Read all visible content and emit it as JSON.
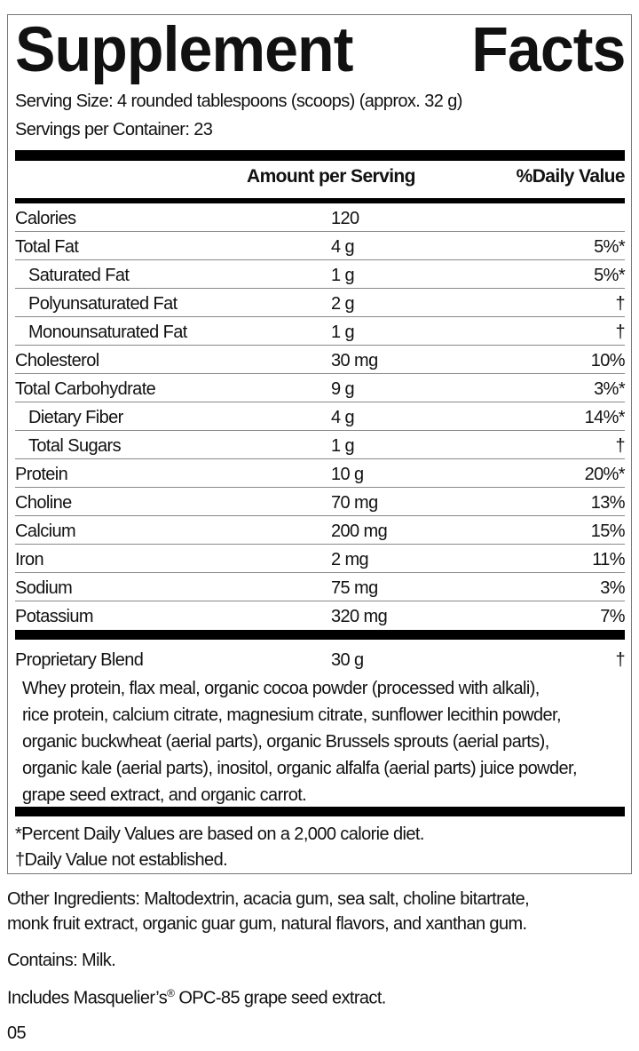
{
  "title": {
    "word1": "Supplement",
    "word2": "Facts"
  },
  "serving_size": "Serving Size: 4 rounded tablespoons (scoops) (approx. 32 g)",
  "servings_per_container": "Servings per Container: 23",
  "header": {
    "amount": "Amount per Serving",
    "daily_value": "%Daily Value"
  },
  "rows": [
    {
      "name": "Calories",
      "amount": "120",
      "dv": "",
      "indent": false
    },
    {
      "name": "Total Fat",
      "amount": "4 g",
      "dv": "5%*",
      "indent": false
    },
    {
      "name": "Saturated Fat",
      "amount": "1 g",
      "dv": "5%*",
      "indent": true
    },
    {
      "name": "Polyunsaturated Fat",
      "amount": "2 g",
      "dv": "†",
      "indent": true
    },
    {
      "name": "Monounsaturated Fat",
      "amount": "1 g",
      "dv": "†",
      "indent": true
    },
    {
      "name": "Cholesterol",
      "amount": "30 mg",
      "dv": "10%",
      "indent": false
    },
    {
      "name": "Total Carbohydrate",
      "amount": "9 g",
      "dv": "3%*",
      "indent": false
    },
    {
      "name": "Dietary Fiber",
      "amount": "4 g",
      "dv": "14%*",
      "indent": true
    },
    {
      "name": "Total Sugars",
      "amount": "1 g",
      "dv": "†",
      "indent": true
    },
    {
      "name": "Protein",
      "amount": "10 g",
      "dv": "20%*",
      "indent": false
    },
    {
      "name": "Choline",
      "amount": "70 mg",
      "dv": "13%",
      "indent": false
    },
    {
      "name": "Calcium",
      "amount": "200 mg",
      "dv": "15%",
      "indent": false
    },
    {
      "name": "Iron",
      "amount": "2 mg",
      "dv": "11%",
      "indent": false
    },
    {
      "name": "Sodium",
      "amount": "75 mg",
      "dv": "3%",
      "indent": false
    },
    {
      "name": "Potassium",
      "amount": "320 mg",
      "dv": "7%",
      "indent": false
    }
  ],
  "blend": {
    "name": "Proprietary Blend",
    "amount": "30 g",
    "dv": "†",
    "lines": [
      "Whey protein, flax meal, organic cocoa powder (processed with alkali),",
      "rice protein, calcium citrate, magnesium citrate, sunflower lecithin powder,",
      "organic buckwheat (aerial parts), organic Brussels sprouts (aerial parts),",
      "organic kale (aerial parts), inositol, organic alfalfa (aerial parts) juice powder,",
      "grape seed extract, and organic carrot."
    ]
  },
  "footnotes": [
    "*Percent Daily Values are based on a 2,000 calorie diet.",
    "†Daily Value not established."
  ],
  "other_ingredients": [
    "Other Ingredients: Maltodextrin, acacia gum, sea salt, choline bitartrate,",
    "monk fruit extract, organic guar gum, natural flavors, and xanthan gum."
  ],
  "contains": "Contains: Milk.",
  "includes": {
    "text": "Includes Masquelier’s",
    "reg": "®",
    "rest": " OPC-85 grape seed extract."
  },
  "code": "05"
}
